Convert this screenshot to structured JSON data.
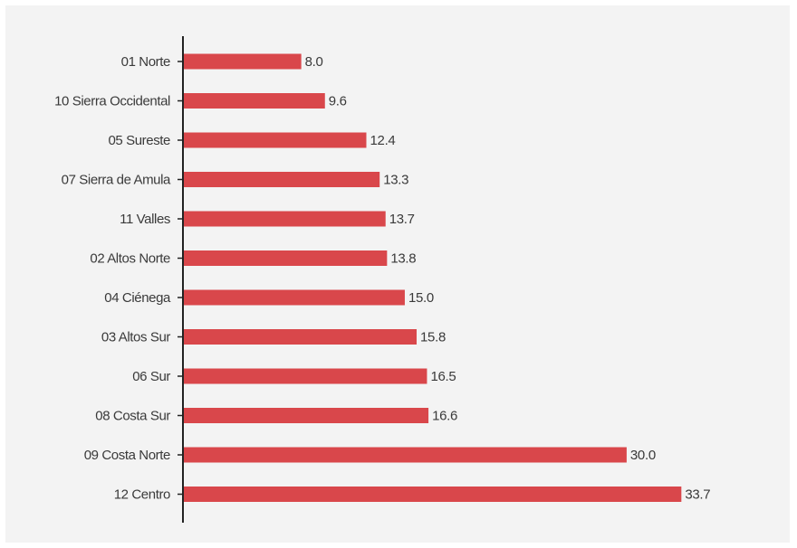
{
  "chart_data": {
    "type": "bar",
    "orientation": "horizontal",
    "title": "",
    "xlabel": "",
    "ylabel": "",
    "categories": [
      "01 Norte",
      "10 Sierra Occidental",
      "05 Sureste",
      "07 Sierra de Amula",
      "11 Valles",
      "02 Altos Norte",
      "04 Ciénega",
      "03 Altos Sur",
      "06 Sur",
      "08 Costa Sur",
      "09 Costa Norte",
      "12 Centro"
    ],
    "values": [
      8.0,
      9.6,
      12.4,
      13.3,
      13.7,
      13.8,
      15.0,
      15.8,
      16.5,
      16.6,
      30.0,
      33.7
    ],
    "value_labels": [
      "8.0",
      "9.6",
      "12.4",
      "13.3",
      "13.7",
      "13.8",
      "15.0",
      "15.8",
      "16.5",
      "16.6",
      "30.0",
      "33.7"
    ],
    "xlim": [
      0,
      34
    ],
    "grid": false,
    "legend": "none",
    "bar_color": "#d9474b",
    "axis_color": "#222222",
    "background_color": "#f3f3f3"
  }
}
